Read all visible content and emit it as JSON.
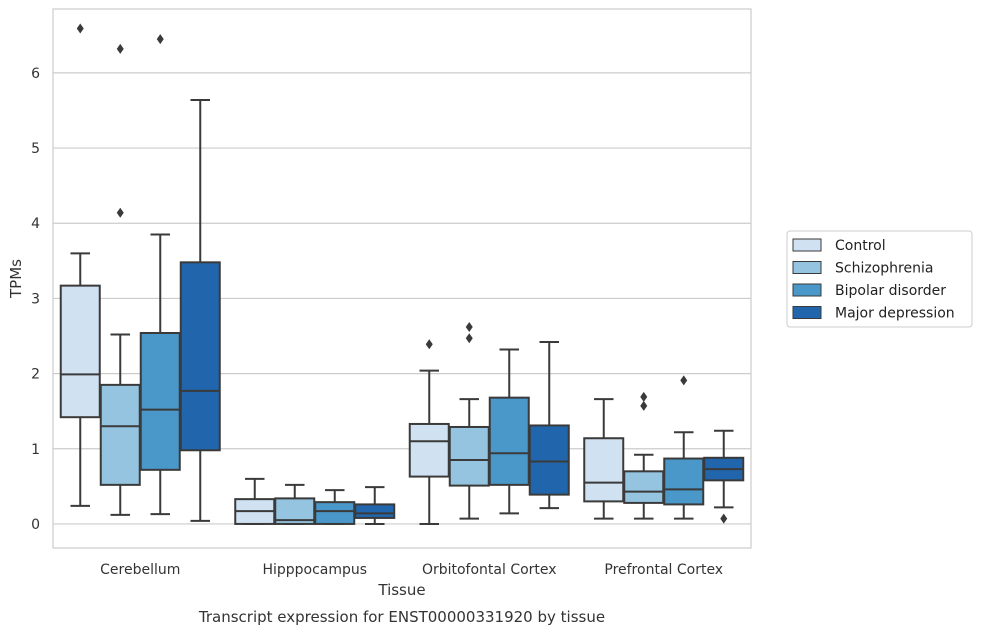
{
  "chart_data": {
    "type": "box",
    "title": "",
    "caption": "Transcript expression for ENST00000331920 by tissue",
    "xlabel": "Tissue",
    "ylabel": "TPMs",
    "ylim": [
      -0.32,
      6.85
    ],
    "yticks": [
      0,
      1,
      2,
      3,
      4,
      5,
      6
    ],
    "grid": true,
    "legend_position": "right",
    "categories": [
      "Cerebellum",
      "Hipppocampus",
      "Orbitofontal Cortex",
      "Prefrontal Cortex"
    ],
    "series": [
      {
        "name": "Control",
        "color": "#d0e1f2",
        "boxes": [
          {
            "whisker_low": 0.24,
            "q1": 1.42,
            "median": 1.99,
            "q3": 3.17,
            "whisker_high": 3.6,
            "outliers": [
              6.59
            ]
          },
          {
            "whisker_low": 0.0,
            "q1": 0.0,
            "median": 0.17,
            "q3": 0.33,
            "whisker_high": 0.6,
            "outliers": []
          },
          {
            "whisker_low": 0.0,
            "q1": 0.63,
            "median": 1.1,
            "q3": 1.33,
            "whisker_high": 2.04,
            "outliers": [
              2.39
            ]
          },
          {
            "whisker_low": 0.07,
            "q1": 0.3,
            "median": 0.55,
            "q3": 1.14,
            "whisker_high": 1.66,
            "outliers": []
          }
        ]
      },
      {
        "name": "Schizophrenia",
        "color": "#94c4df",
        "boxes": [
          {
            "whisker_low": 0.12,
            "q1": 0.52,
            "median": 1.3,
            "q3": 1.85,
            "whisker_high": 2.52,
            "outliers": [
              4.14,
              6.32
            ]
          },
          {
            "whisker_low": 0.0,
            "q1": 0.0,
            "median": 0.05,
            "q3": 0.34,
            "whisker_high": 0.52,
            "outliers": []
          },
          {
            "whisker_low": 0.07,
            "q1": 0.51,
            "median": 0.85,
            "q3": 1.29,
            "whisker_high": 1.66,
            "outliers": [
              2.47,
              2.62
            ]
          },
          {
            "whisker_low": 0.07,
            "q1": 0.28,
            "median": 0.43,
            "q3": 0.7,
            "whisker_high": 0.92,
            "outliers": [
              1.57,
              1.69
            ]
          }
        ]
      },
      {
        "name": "Bipolar disorder",
        "color": "#4a98c9",
        "boxes": [
          {
            "whisker_low": 0.13,
            "q1": 0.72,
            "median": 1.52,
            "q3": 2.54,
            "whisker_high": 3.85,
            "outliers": [
              6.45
            ]
          },
          {
            "whisker_low": 0.0,
            "q1": 0.0,
            "median": 0.17,
            "q3": 0.29,
            "whisker_high": 0.45,
            "outliers": []
          },
          {
            "whisker_low": 0.14,
            "q1": 0.52,
            "median": 0.94,
            "q3": 1.68,
            "whisker_high": 2.32,
            "outliers": []
          },
          {
            "whisker_low": 0.07,
            "q1": 0.26,
            "median": 0.46,
            "q3": 0.87,
            "whisker_high": 1.22,
            "outliers": [
              1.91
            ]
          }
        ]
      },
      {
        "name": "Major depression",
        "color": "#2166ac",
        "boxes": [
          {
            "whisker_low": 0.04,
            "q1": 0.98,
            "median": 1.77,
            "q3": 3.48,
            "whisker_high": 5.64,
            "outliers": []
          },
          {
            "whisker_low": 0.0,
            "q1": 0.08,
            "median": 0.14,
            "q3": 0.26,
            "whisker_high": 0.49,
            "outliers": []
          },
          {
            "whisker_low": 0.21,
            "q1": 0.39,
            "median": 0.83,
            "q3": 1.31,
            "whisker_high": 2.42,
            "outliers": []
          },
          {
            "whisker_low": 0.22,
            "q1": 0.58,
            "median": 0.73,
            "q3": 0.88,
            "whisker_high": 1.24,
            "outliers": [
              0.07
            ]
          }
        ]
      }
    ]
  }
}
